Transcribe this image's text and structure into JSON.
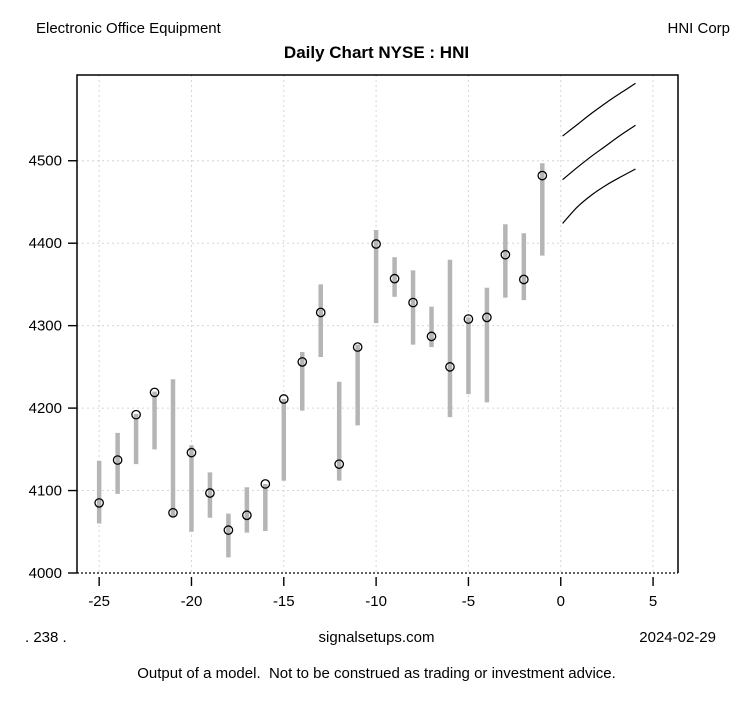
{
  "header": {
    "left": "Electronic Office Equipment",
    "right": "HNI Corp",
    "title": "Daily Chart NYSE : HNI"
  },
  "footer": {
    "left": ". 238 .",
    "center": "signalsetups.com",
    "right": "2024-02-29",
    "disclaimer": "Output of a model.  Not to be construed as trading or investment advice."
  },
  "chart_data": {
    "type": "bar",
    "subtype": "high-low-close-with-forecast-fan",
    "title": "Daily Chart NYSE : HNI",
    "xlabel": "",
    "ylabel": "",
    "xlim": [
      -26.2,
      6.35
    ],
    "ylim": [
      4000,
      4604
    ],
    "x_ticks": [
      -25,
      -20,
      -15,
      -10,
      -5,
      0,
      5
    ],
    "y_ticks": [
      4000,
      4100,
      4200,
      4300,
      4400,
      4500
    ],
    "grid": "dashed-light-gray",
    "legend": "none",
    "colors": {
      "bar": "#b5b5b5",
      "grid": "#d6d6d6",
      "marker": "#000000",
      "forecast": "#000000",
      "frame": "#000000"
    },
    "bars": [
      {
        "x": -25,
        "low": 4060,
        "high": 4136,
        "close": 4085
      },
      {
        "x": -24,
        "low": 4096,
        "high": 4170,
        "close": 4137
      },
      {
        "x": -23,
        "low": 4132,
        "high": 4193,
        "close": 4192
      },
      {
        "x": -22,
        "low": 4150,
        "high": 4220,
        "close": 4219
      },
      {
        "x": -21,
        "low": 4068,
        "high": 4235,
        "close": 4073
      },
      {
        "x": -20,
        "low": 4050,
        "high": 4155,
        "close": 4146
      },
      {
        "x": -19,
        "low": 4067,
        "high": 4122,
        "close": 4097
      },
      {
        "x": -18,
        "low": 4019,
        "high": 4072,
        "close": 4052
      },
      {
        "x": -17,
        "low": 4049,
        "high": 4104,
        "close": 4070
      },
      {
        "x": -16,
        "low": 4051,
        "high": 4108,
        "close": 4108
      },
      {
        "x": -15,
        "low": 4112,
        "high": 4211,
        "close": 4211
      },
      {
        "x": -14,
        "low": 4197,
        "high": 4268,
        "close": 4256
      },
      {
        "x": -13,
        "low": 4262,
        "high": 4350,
        "close": 4316
      },
      {
        "x": -12,
        "low": 4112,
        "high": 4232,
        "close": 4132
      },
      {
        "x": -11,
        "low": 4179,
        "high": 4277,
        "close": 4274
      },
      {
        "x": -10,
        "low": 4303,
        "high": 4416,
        "close": 4399
      },
      {
        "x": -9,
        "low": 4335,
        "high": 4383,
        "close": 4357
      },
      {
        "x": -8,
        "low": 4277,
        "high": 4367,
        "close": 4328
      },
      {
        "x": -7,
        "low": 4274,
        "high": 4323,
        "close": 4287
      },
      {
        "x": -6,
        "low": 4189,
        "high": 4380,
        "close": 4250
      },
      {
        "x": -5,
        "low": 4217,
        "high": 4310,
        "close": 4308
      },
      {
        "x": -4,
        "low": 4207,
        "high": 4346,
        "close": 4310
      },
      {
        "x": -3,
        "low": 4334,
        "high": 4423,
        "close": 4386
      },
      {
        "x": -2,
        "low": 4331,
        "high": 4412,
        "close": 4356
      },
      {
        "x": -1,
        "low": 4385,
        "high": 4497,
        "close": 4482
      }
    ],
    "forecast": [
      {
        "name": "upper",
        "x": [
          0.1,
          0.9,
          1.7,
          2.5,
          3.3,
          4.05
        ],
        "y": [
          4530,
          4544,
          4558,
          4571,
          4583,
          4594
        ]
      },
      {
        "name": "middle",
        "x": [
          0.1,
          0.9,
          1.7,
          2.5,
          3.3,
          4.05
        ],
        "y": [
          4477,
          4492,
          4506,
          4519,
          4532,
          4543
        ]
      },
      {
        "name": "lower",
        "x": [
          0.1,
          0.9,
          1.7,
          2.5,
          3.3,
          4.05
        ],
        "y": [
          4424,
          4444,
          4459,
          4471,
          4481,
          4490
        ]
      }
    ]
  }
}
